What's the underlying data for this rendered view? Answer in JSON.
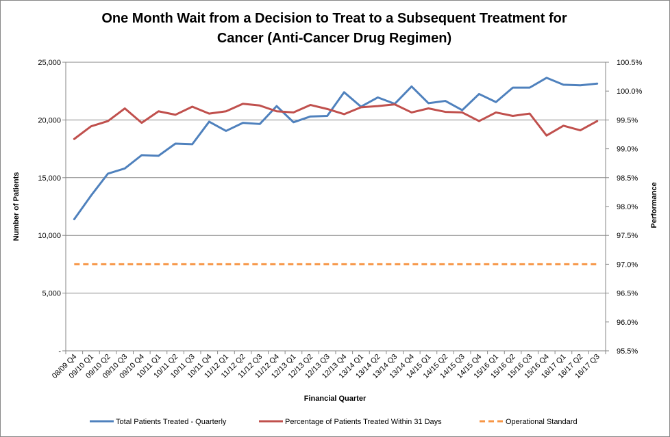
{
  "chart_data": {
    "type": "line",
    "title_line1": "One Month Wait from a Decision to Treat to a Subsequent Treatment for",
    "title_line2": "Cancer (Anti-Cancer Drug Regimen)",
    "xlabel": "Financial Quarter",
    "ylabel_left": "Number of Patients",
    "ylabel_right": "Performance",
    "categories": [
      "08/09 Q4",
      "09/10 Q1",
      "09/10 Q2",
      "09/10 Q3",
      "09/10 Q4",
      "10/11 Q1",
      "10/11 Q2",
      "10/11 Q3",
      "10/11 Q4",
      "11/12 Q1",
      "11/12 Q2",
      "11/12 Q3",
      "11/12 Q4",
      "12/13 Q1",
      "12/13 Q2",
      "12/13 Q3",
      "12/13 Q4",
      "13/14 Q1",
      "13/14 Q2",
      "13/14 Q3",
      "13/14 Q4",
      "14/15 Q1",
      "14/15 Q2",
      "14/15 Q3",
      "14/15 Q4",
      "15/16 Q1",
      "15/16 Q2",
      "15/16 Q3",
      "15/16 Q4",
      "16/17 Q1",
      "16/17 Q2",
      "16/17 Q3"
    ],
    "left_axis": {
      "min": 0,
      "max": 25000,
      "ticks": [
        "-",
        "5,000",
        "10,000",
        "15,000",
        "20,000",
        "25,000"
      ]
    },
    "right_axis": {
      "min": 95.5,
      "max": 100.5,
      "ticks": [
        "95.5%",
        "96.0%",
        "96.5%",
        "97.0%",
        "97.5%",
        "98.0%",
        "98.5%",
        "99.0%",
        "99.5%",
        "100.0%",
        "100.5%"
      ]
    },
    "gridlines": true,
    "legend_position": "bottom",
    "series": [
      {
        "name": "Total Patients Treated - Quarterly",
        "axis": "left",
        "color": "#4F81BD",
        "dash": "",
        "values": [
          11400,
          13450,
          15350,
          15800,
          16950,
          16900,
          17950,
          17900,
          19850,
          19050,
          19750,
          19650,
          21200,
          19800,
          20300,
          20350,
          22400,
          21150,
          21950,
          21400,
          22900,
          21450,
          21650,
          20850,
          22250,
          21550,
          22800,
          22800,
          23650,
          23050,
          23000,
          23150
        ]
      },
      {
        "name": "Percentage of Patients Treated Within 31 Days",
        "axis": "right",
        "color": "#C0504D",
        "dash": "",
        "values": [
          99.17,
          99.39,
          99.48,
          99.7,
          99.45,
          99.65,
          99.59,
          99.73,
          99.61,
          99.65,
          99.78,
          99.75,
          99.65,
          99.63,
          99.76,
          99.69,
          99.6,
          99.72,
          99.74,
          99.77,
          99.63,
          99.7,
          99.64,
          99.63,
          99.48,
          99.63,
          99.57,
          99.61,
          99.23,
          99.4,
          99.32,
          99.48
        ]
      },
      {
        "name": "Operational Standard",
        "axis": "right",
        "color": "#F79646",
        "dash": "8,5",
        "values": [
          97,
          97,
          97,
          97,
          97,
          97,
          97,
          97,
          97,
          97,
          97,
          97,
          97,
          97,
          97,
          97,
          97,
          97,
          97,
          97,
          97,
          97,
          97,
          97,
          97,
          97,
          97,
          97,
          97,
          97,
          97,
          97
        ]
      }
    ]
  }
}
